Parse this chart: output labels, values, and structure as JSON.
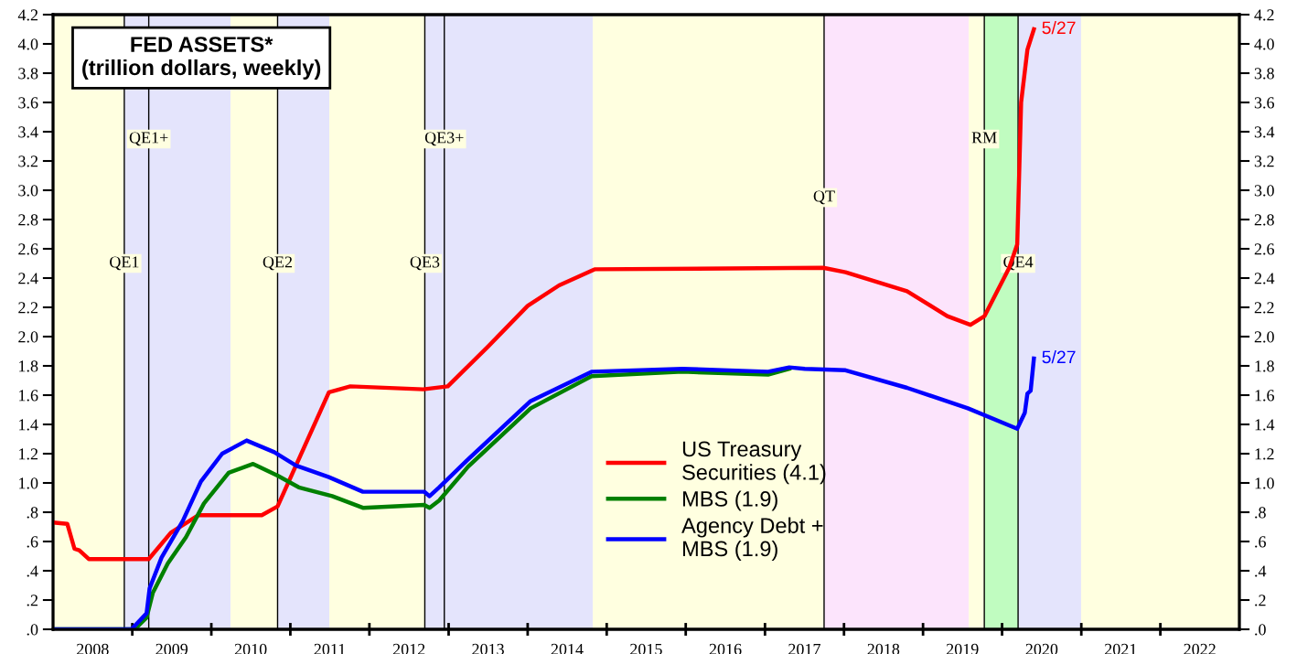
{
  "chart_data": {
    "type": "line",
    "title": "FED ASSETS*\n(trillion dollars, weekly)",
    "xlim": [
      "2008-01-01",
      "2023-01-01"
    ],
    "xticks": [
      {
        "value": "2008-07-02",
        "label": "2008"
      },
      {
        "value": "2009-01-01",
        "label": null
      },
      {
        "value": "2009-07-02",
        "label": "2009"
      },
      {
        "value": "2010-01-01",
        "label": null
      },
      {
        "value": "2010-07-02",
        "label": "2010"
      },
      {
        "value": "2011-01-01",
        "label": null
      },
      {
        "value": "2011-07-02",
        "label": "2011"
      },
      {
        "value": "2012-01-01",
        "label": null
      },
      {
        "value": "2012-07-02",
        "label": "2012"
      },
      {
        "value": "2013-01-01",
        "label": null
      },
      {
        "value": "2013-07-02",
        "label": "2013"
      },
      {
        "value": "2014-01-01",
        "label": null
      },
      {
        "value": "2014-07-02",
        "label": "2014"
      },
      {
        "value": "2015-01-01",
        "label": null
      },
      {
        "value": "2015-07-02",
        "label": "2015"
      },
      {
        "value": "2016-01-01",
        "label": null
      },
      {
        "value": "2016-07-02",
        "label": "2016"
      },
      {
        "value": "2017-01-01",
        "label": null
      },
      {
        "value": "2017-07-02",
        "label": "2017"
      },
      {
        "value": "2018-01-01",
        "label": null
      },
      {
        "value": "2018-07-02",
        "label": "2018"
      },
      {
        "value": "2019-01-01",
        "label": null
      },
      {
        "value": "2019-07-02",
        "label": "2019"
      },
      {
        "value": "2020-01-01",
        "label": null
      },
      {
        "value": "2020-07-02",
        "label": "2020"
      },
      {
        "value": "2021-01-01",
        "label": null
      },
      {
        "value": "2021-07-02",
        "label": "2021"
      },
      {
        "value": "2022-01-01",
        "label": null
      },
      {
        "value": "2022-07-02",
        "label": "2022"
      }
    ],
    "ylim": [
      0,
      4.2
    ],
    "yticks": [
      {
        "value": 0,
        "label": ".0"
      },
      {
        "value": 0.2,
        "label": ".2"
      },
      {
        "value": 0.4,
        "label": ".4"
      },
      {
        "value": 0.6,
        "label": ".6"
      },
      {
        "value": 0.8,
        "label": ".8"
      },
      {
        "value": 1.0,
        "label": "1.0"
      },
      {
        "value": 1.2,
        "label": "1.2"
      },
      {
        "value": 1.4,
        "label": "1.4"
      },
      {
        "value": 1.6,
        "label": "1.6"
      },
      {
        "value": 1.8,
        "label": "1.8"
      },
      {
        "value": 2.0,
        "label": "2.0"
      },
      {
        "value": 2.2,
        "label": "2.2"
      },
      {
        "value": 2.4,
        "label": "2.4"
      },
      {
        "value": 2.6,
        "label": "2.6"
      },
      {
        "value": 2.8,
        "label": "2.8"
      },
      {
        "value": 3.0,
        "label": "3.0"
      },
      {
        "value": 3.2,
        "label": "3.2"
      },
      {
        "value": 3.4,
        "label": "3.4"
      },
      {
        "value": 3.6,
        "label": "3.6"
      },
      {
        "value": 3.8,
        "label": "3.8"
      },
      {
        "value": 4.0,
        "label": "4.0"
      },
      {
        "value": 4.2,
        "label": "4.2"
      }
    ],
    "y2lim": [
      0,
      4.2
    ],
    "y2ticks": [
      {
        "value": 0,
        "label": ".0"
      },
      {
        "value": 0.2,
        "label": ".2"
      },
      {
        "value": 0.4,
        "label": ".4"
      },
      {
        "value": 0.6,
        "label": ".6"
      },
      {
        "value": 0.8,
        "label": ".8"
      },
      {
        "value": 1.0,
        "label": "1.0"
      },
      {
        "value": 1.2,
        "label": "1.2"
      },
      {
        "value": 1.4,
        "label": "1.4"
      },
      {
        "value": 1.6,
        "label": "1.6"
      },
      {
        "value": 1.8,
        "label": "1.8"
      },
      {
        "value": 2.0,
        "label": "2.0"
      },
      {
        "value": 2.2,
        "label": "2.2"
      },
      {
        "value": 2.4,
        "label": "2.4"
      },
      {
        "value": 2.6,
        "label": "2.6"
      },
      {
        "value": 2.8,
        "label": "2.8"
      },
      {
        "value": 3.0,
        "label": "3.0"
      },
      {
        "value": 3.2,
        "label": "3.2"
      },
      {
        "value": 3.4,
        "label": "3.4"
      },
      {
        "value": 3.6,
        "label": "3.6"
      },
      {
        "value": 3.8,
        "label": "3.8"
      },
      {
        "value": 4.0,
        "label": "4.0"
      },
      {
        "value": 4.2,
        "label": "4.2"
      }
    ],
    "series": [
      {
        "name": "US Treasury\nSecurities (4.1)",
        "color": "#ff0000",
        "x": [
          "2008-01-02",
          "2008-03-07",
          "2008-04-09",
          "2008-05-01",
          "2008-06-14",
          "2009-03-18",
          "2009-06-28",
          "2009-11-03",
          "2010-08-22",
          "2010-11-03",
          "2011-06-28",
          "2011-10-05",
          "2012-09-06",
          "2012-12-28",
          "2013-07-01",
          "2014-01-01",
          "2014-05-26",
          "2014-11-06",
          "2017-09-27",
          "2018-01-08",
          "2018-10-19",
          "2019-04-23",
          "2019-08-08",
          "2019-10-12",
          "2020-02-03",
          "2020-03-11",
          "2020-03-29",
          "2020-04-27",
          "2020-05-27"
        ],
        "values": [
          0.73,
          0.72,
          0.55,
          0.54,
          0.48,
          0.48,
          0.66,
          0.78,
          0.78,
          0.84,
          1.62,
          1.66,
          1.64,
          1.66,
          1.93,
          2.21,
          2.35,
          2.46,
          2.47,
          2.44,
          2.31,
          2.14,
          2.08,
          2.14,
          2.47,
          2.63,
          3.6,
          3.96,
          4.1
        ]
      },
      {
        "name": "MBS (1.9)",
        "color": "#008000",
        "x": [
          "2008-01-02",
          "2009-01-12",
          "2009-03-08",
          "2009-04-06",
          "2009-06-14",
          "2009-09-06",
          "2009-11-28",
          "2010-03-22",
          "2010-07-13",
          "2010-11-03",
          "2011-02-09",
          "2011-07-13",
          "2011-12-02",
          "2012-09-10",
          "2012-10-05",
          "2012-11-18",
          "2013-03-31",
          "2014-01-15",
          "2014-10-23",
          "2015-12-17",
          "2017-01-15",
          "2017-04-23"
        ],
        "values": [
          0,
          0,
          0.08,
          0.25,
          0.45,
          0.63,
          0.86,
          1.07,
          1.13,
          1.05,
          0.97,
          0.91,
          0.83,
          0.85,
          0.83,
          0.88,
          1.11,
          1.51,
          1.73,
          1.76,
          1.74,
          1.78
        ]
      },
      {
        "name": "Agency Debt +\nMBS (1.9)",
        "color": "#0000ff",
        "x": [
          "2008-01-02",
          "2008-12-28",
          "2009-03-08",
          "2009-03-22",
          "2009-05-16",
          "2009-08-22",
          "2009-11-14",
          "2010-02-20",
          "2010-06-13",
          "2010-10-19",
          "2011-01-26",
          "2011-06-28",
          "2011-12-02",
          "2012-09-10",
          "2012-10-05",
          "2012-11-18",
          "2013-03-31",
          "2014-01-15",
          "2014-10-23",
          "2015-12-17",
          "2017-01-15",
          "2017-04-23",
          "2017-07-04",
          "2018-01-08",
          "2018-10-19",
          "2019-07-27",
          "2020-03-11",
          "2020-04-15",
          "2020-04-27",
          "2020-05-12",
          "2020-05-27"
        ],
        "values": [
          0,
          0,
          0.11,
          0.28,
          0.49,
          0.74,
          1.01,
          1.2,
          1.29,
          1.21,
          1.12,
          1.04,
          0.94,
          0.94,
          0.91,
          0.97,
          1.16,
          1.56,
          1.76,
          1.78,
          1.76,
          1.79,
          1.78,
          1.77,
          1.65,
          1.51,
          1.37,
          1.48,
          1.61,
          1.63,
          1.85
        ]
      }
    ],
    "annotations": [
      {
        "text": "5/27",
        "x": "2020-05-27",
        "y": 4.1
      },
      {
        "text": "5/27",
        "x": "2020-05-27",
        "y": 1.85
      }
    ],
    "ref_lines": [
      {
        "axis": "x",
        "value": "2008-11-25",
        "label": "QE1"
      },
      {
        "axis": "x",
        "value": "2009-03-18",
        "label": "QE1+"
      },
      {
        "axis": "x",
        "value": "2010-11-03",
        "label": "QE2"
      },
      {
        "axis": "x",
        "value": "2012-09-13",
        "label": "QE3"
      },
      {
        "axis": "x",
        "value": "2012-12-12",
        "label": "QE3+"
      },
      {
        "axis": "x",
        "value": "2017-10-01",
        "label": "QT"
      },
      {
        "axis": "x",
        "value": "2019-10-11",
        "label": "RM"
      },
      {
        "axis": "x",
        "value": "2020-03-15",
        "label": "QE4"
      }
    ],
    "bands": [
      {
        "axis": "x",
        "from": "2008-01-01",
        "to": "2008-11-25",
        "color": "#ffffe0"
      },
      {
        "axis": "x",
        "from": "2008-11-25",
        "to": "2010-03-31",
        "color": "#e4e4fc"
      },
      {
        "axis": "x",
        "from": "2010-03-31",
        "to": "2010-11-03",
        "color": "#ffffe0"
      },
      {
        "axis": "x",
        "from": "2010-11-03",
        "to": "2011-06-30",
        "color": "#e4e4fc"
      },
      {
        "axis": "x",
        "from": "2011-06-30",
        "to": "2012-09-13",
        "color": "#ffffe0"
      },
      {
        "axis": "x",
        "from": "2012-09-13",
        "to": "2014-10-29",
        "color": "#e4e4fc"
      },
      {
        "axis": "x",
        "from": "2014-10-29",
        "to": "2017-10-01",
        "color": "#ffffe0"
      },
      {
        "axis": "x",
        "from": "2017-10-01",
        "to": "2019-07-31",
        "color": "#fce4fc"
      },
      {
        "axis": "x",
        "from": "2019-07-31",
        "to": "2019-10-11",
        "color": "#ffffe0"
      },
      {
        "axis": "x",
        "from": "2019-10-11",
        "to": "2020-03-15",
        "color": "#c0fcc0"
      },
      {
        "axis": "x",
        "from": "2020-03-15",
        "to": "2020-12-31",
        "color": "#e4e4fc"
      },
      {
        "axis": "x",
        "from": "2020-12-31",
        "to": "2023-01-01",
        "color": "#ffffe0"
      }
    ],
    "legend": "bottom",
    "grid": false,
    "marker": "none",
    "line_style": "solid"
  }
}
